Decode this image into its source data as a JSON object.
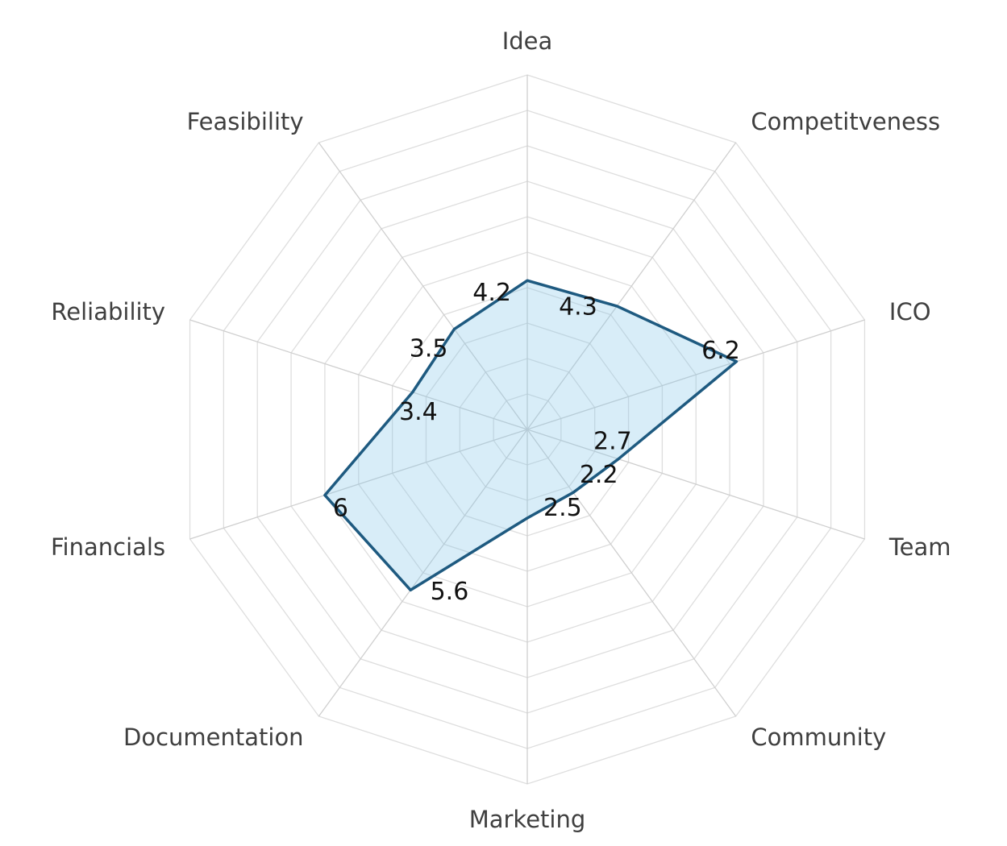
{
  "chart_data": {
    "type": "radar",
    "title": "",
    "categories": [
      "Idea",
      "Competitveness",
      "ICO",
      "Team",
      "Community",
      "Marketing",
      "Documentation",
      "Financials",
      "Reliability",
      "Feasibility"
    ],
    "series": [
      {
        "values": [
          4.2,
          4.3,
          6.2,
          2.7,
          2.2,
          2.5,
          5.6,
          6,
          3.4,
          3.5
        ]
      }
    ],
    "rlim": [
      0,
      10
    ],
    "grid_levels": 10,
    "grid": true,
    "legend": "none",
    "colors": {
      "line": "#1e5a80",
      "fill": "#87c8e8",
      "grid": "#dedede",
      "label": "#3f3f3f"
    }
  }
}
